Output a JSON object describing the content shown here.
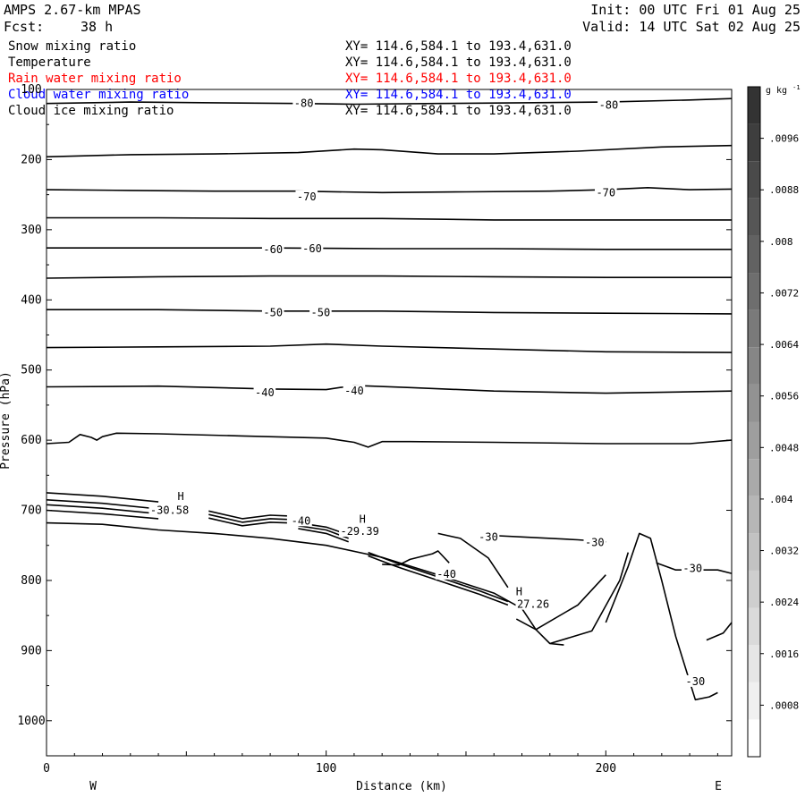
{
  "header": {
    "model": "AMPS 2.67-km MPAS",
    "forecast_label": "Fcst:",
    "forecast_value": "38 h",
    "init": "Init: 00 UTC Fri 01 Aug 25",
    "valid": "Valid: 14 UTC Sat 02 Aug 25"
  },
  "fields": [
    {
      "name": "Snow mixing ratio",
      "xy": "XY= 114.6,584.1 to 193.4,631.0",
      "color": "#000000"
    },
    {
      "name": "Temperature",
      "xy": "XY= 114.6,584.1 to 193.4,631.0",
      "color": "#000000"
    },
    {
      "name": "Rain water mixing ratio",
      "xy": "XY= 114.6,584.1 to 193.4,631.0",
      "color": "#ff0000"
    },
    {
      "name": "Cloud water mixing ratio",
      "xy": "XY= 114.6,584.1 to 193.4,631.0",
      "color": "#0000ff"
    },
    {
      "name": "Cloud ice mixing ratio",
      "xy": "XY= 114.6,584.1 to 193.4,631.0",
      "color": "#000000"
    }
  ],
  "chart_data": {
    "type": "line",
    "xlabel": "Distance (km)",
    "ylabel": "Pressure (hPa)",
    "xlim": [
      0,
      245
    ],
    "ylim": [
      1050,
      100
    ],
    "x_ticks": [
      0,
      100,
      200
    ],
    "y_ticks": [
      100,
      200,
      300,
      400,
      500,
      600,
      700,
      800,
      900,
      1000
    ],
    "x_tick_labels": [
      "0",
      "100",
      "200"
    ],
    "y_tick_labels": [
      "100",
      "200",
      "300",
      "400",
      "500",
      "600",
      "700",
      "800",
      "900",
      "1000"
    ],
    "left_end_label": "W",
    "right_end_label": "E",
    "contour_labels": [
      {
        "text": "-80",
        "x": 92,
        "p": 120
      },
      {
        "text": "-80",
        "x": 201,
        "p": 122
      },
      {
        "text": "-70",
        "x": 93,
        "p": 253
      },
      {
        "text": "-70",
        "x": 200,
        "p": 247
      },
      {
        "text": "-60",
        "x": 81,
        "p": 328
      },
      {
        "text": "-60",
        "x": 95,
        "p": 327
      },
      {
        "text": "-50",
        "x": 81,
        "p": 418
      },
      {
        "text": "-50",
        "x": 98,
        "p": 418
      },
      {
        "text": "-40",
        "x": 78,
        "p": 532
      },
      {
        "text": "-40",
        "x": 110,
        "p": 530
      },
      {
        "text": "-40",
        "x": 91,
        "p": 715
      },
      {
        "text": "-40",
        "x": 143,
        "p": 791
      },
      {
        "text": "-30",
        "x": 158,
        "p": 738
      },
      {
        "text": "-30",
        "x": 196,
        "p": 746
      },
      {
        "text": "-30",
        "x": 231,
        "p": 783
      },
      {
        "text": "-30",
        "x": 232,
        "p": 944
      },
      {
        "text": "H",
        "x": 48,
        "p": 680
      },
      {
        "text": "-30.58",
        "x": 44,
        "p": 700
      },
      {
        "text": "H",
        "x": 113,
        "p": 713
      },
      {
        "text": "-29.39",
        "x": 112,
        "p": 730
      },
      {
        "text": "H",
        "x": 169,
        "p": 816
      },
      {
        "text": "27.26",
        "x": 174,
        "p": 834
      }
    ],
    "colorbar": {
      "unit": "g kg",
      "unit_exponent": "-1",
      "tick_labels": [
        ".0096",
        ".0088",
        ".008",
        ".0072",
        ".0064",
        ".0056",
        ".0048",
        ".004",
        ".0032",
        ".0024",
        ".0016",
        ".0008"
      ],
      "colors": [
        "#ffffff",
        "#f0f0f0",
        "#e6e6e6",
        "#dadada",
        "#cecece",
        "#c2c2c2",
        "#b6b6b6",
        "#aaaaaa",
        "#9e9e9e",
        "#929292",
        "#868686",
        "#7a7a7a",
        "#6e6e6e",
        "#626262",
        "#565656",
        "#4a4a4a",
        "#3e3e3e",
        "#333333"
      ]
    },
    "isotherms": [
      {
        "x": [
          0,
          30,
          60,
          90,
          110,
          140,
          170,
          200,
          230,
          245
        ],
        "p": [
          120,
          118,
          119,
          120,
          121,
          120,
          119,
          118,
          115,
          113
        ]
      },
      {
        "x": [
          0,
          30,
          60,
          90,
          110,
          120,
          140,
          160,
          190,
          220,
          245
        ],
        "p": [
          196,
          193,
          192,
          190,
          185,
          186,
          192,
          192,
          188,
          182,
          180
        ]
      },
      {
        "x": [
          0,
          30,
          60,
          90,
          120,
          150,
          180,
          200,
          215,
          230,
          245
        ],
        "p": [
          243,
          244,
          245,
          245,
          247,
          246,
          245,
          243,
          240,
          243,
          242
        ]
      },
      {
        "x": [
          0,
          40,
          80,
          120,
          160,
          200,
          245
        ],
        "p": [
          283,
          283,
          284,
          284,
          286,
          286,
          286
        ]
      },
      {
        "x": [
          0,
          40,
          80,
          120,
          160,
          200,
          245
        ],
        "p": [
          326,
          326,
          326,
          327,
          327,
          328,
          328
        ]
      },
      {
        "x": [
          0,
          40,
          80,
          120,
          160,
          200,
          245
        ],
        "p": [
          369,
          367,
          366,
          366,
          367,
          368,
          368
        ]
      },
      {
        "x": [
          0,
          40,
          80,
          120,
          160,
          200,
          245
        ],
        "p": [
          414,
          414,
          416,
          416,
          418,
          419,
          420
        ]
      },
      {
        "x": [
          0,
          40,
          80,
          100,
          120,
          160,
          200,
          245
        ],
        "p": [
          468,
          467,
          466,
          463,
          466,
          470,
          474,
          475
        ]
      },
      {
        "x": [
          0,
          40,
          80,
          100,
          110,
          130,
          160,
          200,
          245
        ],
        "p": [
          524,
          523,
          527,
          528,
          522,
          525,
          530,
          533,
          530
        ]
      },
      {
        "x": [
          0,
          8,
          12,
          16,
          18,
          20,
          25,
          40,
          70,
          100,
          110,
          115,
          120,
          130,
          160,
          200,
          230,
          245
        ],
        "p": [
          605,
          603,
          592,
          596,
          600,
          595,
          590,
          591,
          594,
          597,
          603,
          610,
          602,
          602,
          603,
          605,
          605,
          600
        ]
      }
    ],
    "lower_contours": [
      {
        "x": [
          0,
          20,
          30,
          40,
          60,
          80,
          100,
          120,
          140,
          160,
          170,
          175,
          180,
          185
        ],
        "p": [
          718,
          720,
          724,
          728,
          733,
          740,
          750,
          767,
          792,
          818,
          840,
          870,
          890,
          892
        ]
      },
      {
        "x": [
          0,
          20,
          40
        ],
        "p": [
          675,
          680,
          688
        ]
      },
      {
        "x": [
          0,
          20,
          40
        ],
        "p": [
          685,
          690,
          698
        ]
      },
      {
        "x": [
          0,
          20,
          40
        ],
        "p": [
          692,
          697,
          705
        ]
      },
      {
        "x": [
          0,
          20,
          40
        ],
        "p": [
          700,
          705,
          712
        ]
      },
      {
        "x": [
          58,
          70,
          80,
          86
        ],
        "p": [
          701,
          712,
          707,
          708
        ]
      },
      {
        "x": [
          58,
          70,
          80,
          86
        ],
        "p": [
          706,
          717,
          712,
          713
        ]
      },
      {
        "x": [
          58,
          70,
          80,
          86
        ],
        "p": [
          711,
          722,
          717,
          718
        ]
      },
      {
        "x": [
          90,
          100,
          108
        ],
        "p": [
          718,
          724,
          735
        ]
      },
      {
        "x": [
          90,
          100,
          108
        ],
        "p": [
          722,
          728,
          740
        ]
      },
      {
        "x": [
          90,
          100,
          108
        ],
        "p": [
          726,
          733,
          745
        ]
      },
      {
        "x": [
          115,
          125,
          140,
          155,
          165
        ],
        "p": [
          765,
          780,
          800,
          820,
          835
        ]
      },
      {
        "x": [
          115,
          125,
          140,
          155,
          165
        ],
        "p": [
          760,
          775,
          795,
          815,
          830
        ]
      },
      {
        "x": [
          140,
          148,
          158,
          165
        ],
        "p": [
          733,
          740,
          768,
          810
        ]
      },
      {
        "x": [
          120,
          126,
          130,
          138,
          140,
          144
        ],
        "p": [
          777,
          778,
          770,
          762,
          758,
          775
        ]
      },
      {
        "x": [
          155,
          170,
          190,
          200
        ],
        "p": [
          735,
          738,
          742,
          745
        ]
      },
      {
        "x": [
          168,
          175,
          190,
          200
        ],
        "p": [
          855,
          870,
          835,
          792
        ]
      },
      {
        "x": [
          180,
          195,
          205,
          208
        ],
        "p": [
          890,
          872,
          800,
          760
        ]
      },
      {
        "x": [
          200,
          208,
          212,
          216,
          220,
          225,
          232,
          237,
          240
        ],
        "p": [
          860,
          780,
          733,
          740,
          800,
          880,
          970,
          966,
          960
        ]
      },
      {
        "x": [
          218,
          225,
          240,
          245
        ],
        "p": [
          775,
          785,
          785,
          790
        ]
      },
      {
        "x": [
          236,
          242,
          245
        ],
        "p": [
          885,
          875,
          860
        ]
      }
    ]
  }
}
